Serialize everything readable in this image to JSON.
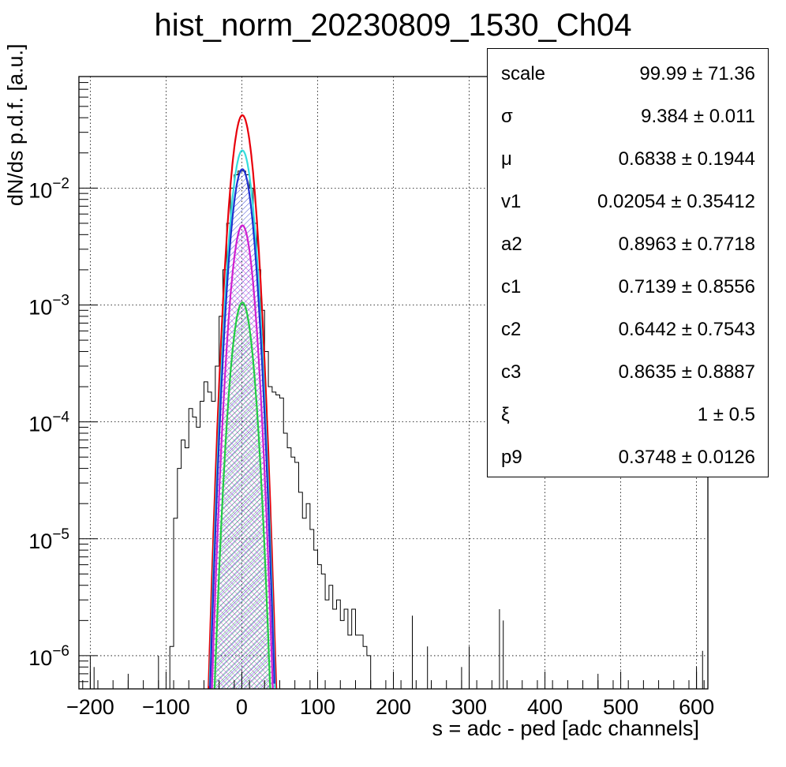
{
  "title": "hist_norm_20230809_1530_Ch04",
  "xlabel": "s = adc - ped [adc channels]",
  "ylabel": "dN/ds p.d.f. [a.u.]",
  "stats": [
    {
      "name": "scale",
      "value": "99.99 ± 71.36"
    },
    {
      "name": "σ",
      "value": "9.384 ± 0.011"
    },
    {
      "name": "μ",
      "value": "0.6838 ± 0.1944"
    },
    {
      "name": "v1",
      "value": "0.02054 ± 0.35412"
    },
    {
      "name": "a2",
      "value": "0.8963 ± 0.7718"
    },
    {
      "name": "c1",
      "value": "0.7139 ± 0.8556"
    },
    {
      "name": "c2",
      "value": "0.6442 ± 0.7543"
    },
    {
      "name": "c3",
      "value": "0.8635 ± 0.8887"
    },
    {
      "name": "ξ",
      "value": "1 ± 0.5"
    },
    {
      "name": "p9",
      "value": "0.3748 ± 0.0126"
    }
  ],
  "chart_data": {
    "type": "line",
    "title": "hist_norm_20230809_1530_Ch04",
    "xlabel": "s = adc - ped [adc channels]",
    "ylabel": "dN/ds p.d.f. [a.u.]",
    "xlim": [
      -215,
      615
    ],
    "ylim": [
      5.2e-07,
      0.09
    ],
    "yscale": "log",
    "grid": true,
    "x_ticks": [
      -200,
      -100,
      0,
      100,
      200,
      300,
      400,
      500,
      600
    ],
    "x_tick_labels": [
      "−200",
      "−100",
      "0",
      "100",
      "200",
      "300",
      "400",
      "500",
      "600"
    ],
    "y_ticks": [
      {
        "value": 1e-06,
        "mant": "10",
        "exp": "−6"
      },
      {
        "value": 1e-05,
        "mant": "10",
        "exp": "−5"
      },
      {
        "value": 0.0001,
        "mant": "10",
        "exp": "−4"
      },
      {
        "value": 0.001,
        "mant": "10",
        "exp": "−3"
      },
      {
        "value": 0.01,
        "mant": "10",
        "exp": "−2"
      }
    ],
    "series": [
      {
        "color": "#000000",
        "style": "histogram",
        "x": [
          -95,
          -90,
          -85,
          -80,
          -75,
          -70,
          -65,
          -60,
          -55,
          -50,
          -45,
          -40,
          -35,
          -30,
          -25,
          -20,
          -15,
          -10,
          -5,
          0,
          5,
          10,
          15,
          20,
          25,
          30,
          35,
          40,
          45,
          50,
          55,
          60,
          65,
          70,
          75,
          80,
          85,
          90,
          95,
          100,
          105,
          110,
          115,
          120,
          125,
          130,
          135,
          140,
          145,
          150,
          155,
          160,
          165
        ],
        "y": [
          1.2e-06,
          1.5e-05,
          4e-05,
          7e-05,
          6e-05,
          0.00013,
          0.00011,
          9e-05,
          0.00015,
          0.00022,
          0.00018,
          0.00015,
          0.0003,
          0.0008,
          0.002,
          0.005,
          0.01,
          0.013,
          0.014,
          0.014,
          0.013,
          0.01,
          0.005,
          0.002,
          0.0009,
          0.0004,
          0.0002,
          0.00018,
          0.00017,
          0.00016,
          8e-05,
          6e-05,
          5e-05,
          4.5e-05,
          2.5e-05,
          1.5e-05,
          2e-05,
          1.2e-05,
          8e-06,
          6e-06,
          5e-06,
          3e-06,
          4e-06,
          2.5e-06,
          3e-06,
          2e-06,
          2.5e-06,
          1.5e-06,
          2.5e-06,
          1.5e-06,
          1.5e-06,
          1.2e-06,
          1e-06
        ]
      },
      {
        "color": "#e8000b",
        "style": "gaussian",
        "amplitude": 0.042,
        "mean": 0.68,
        "sigma": 9.4
      },
      {
        "color": "#33dddd",
        "style": "gaussian",
        "amplitude": 0.021,
        "mean": 0.68,
        "sigma": 9.4
      },
      {
        "color": "#1f2fcf",
        "style": "gaussian-hatched",
        "amplitude": 0.0145,
        "mean": 0.68,
        "sigma": 9.4
      },
      {
        "color": "#d020d0",
        "style": "gaussian-hatched",
        "amplitude": 0.0048,
        "mean": 0.68,
        "sigma": 9.4
      },
      {
        "color": "#22cc44",
        "style": "gaussian-filled",
        "amplitude": 0.00105,
        "mean": 0.68,
        "sigma": 9.4
      }
    ],
    "sparse_spikes": [
      {
        "x": -200,
        "y": 1e-06
      },
      {
        "x": -195,
        "y": 8e-07
      },
      {
        "x": -150,
        "y": 7e-07
      },
      {
        "x": -110,
        "y": 1e-06
      },
      {
        "x": 225,
        "y": 2.2e-06
      },
      {
        "x": 245,
        "y": 1.2e-06
      },
      {
        "x": 290,
        "y": 8e-07
      },
      {
        "x": 300,
        "y": 1.2e-06
      },
      {
        "x": 340,
        "y": 2.5e-06
      },
      {
        "x": 345,
        "y": 2e-06
      },
      {
        "x": 470,
        "y": 7e-07
      },
      {
        "x": 600,
        "y": 8e-07
      },
      {
        "x": 608,
        "y": 1.1e-06
      }
    ],
    "legend": "top-right"
  }
}
